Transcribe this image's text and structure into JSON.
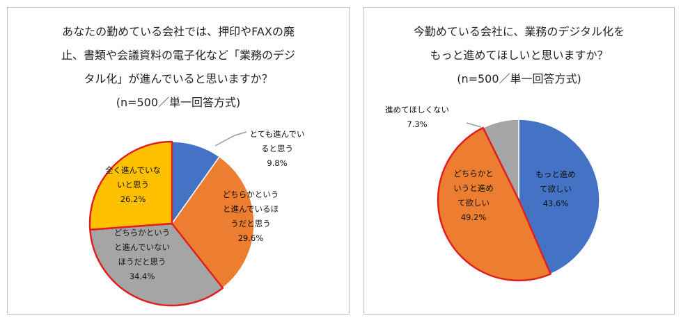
{
  "charts": [
    {
      "title_lines": [
        "あなたの勤めている会社では、押印やFAXの廃",
        "止、書類や会議資料の電子化など「業務のデジ",
        "タル化」が進んでいると思いますか？",
        "(n=500／単一回答方式)"
      ],
      "slice_labels": [
        [
          "とても進んでい",
          "ると思う",
          "9.8%"
        ],
        [
          "どちらかという",
          "と進んでいるほ",
          "うだと思う",
          "29.6%"
        ],
        [
          "どちらかという",
          "と進んでいない",
          "ほうだと思う",
          "34.4%"
        ],
        [
          "全く進んでいな",
          "いと思う",
          "26.2%"
        ]
      ]
    },
    {
      "title_lines": [
        "今勤めている会社に、業務のデジタル化を",
        "もっと進めてほしいと思いますか？",
        "(n=500／単一回答方式)"
      ],
      "slice_labels": [
        [
          "もっと進め",
          "て欲しい",
          "43.6%"
        ],
        [
          "どちらかと",
          "いうと進め",
          "て欲しい",
          "49.2%"
        ],
        [
          "進めてほしくない",
          "7.3%"
        ]
      ]
    }
  ],
  "chart_data": [
    {
      "type": "pie",
      "title": "あなたの勤めている会社では、押印やFAXの廃止、書類や会議資料の電子化など「業務のデジタル化」が進んでいると思いますか？(n=500／単一回答方式)",
      "categories": [
        "とても進んでいると思う",
        "どちらかというと進んでいるほうだと思う",
        "どちらかというと進んでいないほうだと思う",
        "全く進んでいないと思う"
      ],
      "values": [
        9.8,
        29.6,
        34.4,
        26.2
      ],
      "colors": [
        "#4472c4",
        "#ed7d31",
        "#a5a5a5",
        "#ffc000"
      ],
      "highlight_stroke": "#e02020"
    },
    {
      "type": "pie",
      "title": "今勤めている会社に、業務のデジタル化をもっと進めてほしいと思いますか？(n=500／単一回答方式)",
      "categories": [
        "もっと進めて欲しい",
        "どちらかというと進めて欲しい",
        "進めてほしくない"
      ],
      "values": [
        43.6,
        49.2,
        7.3
      ],
      "colors": [
        "#4472c4",
        "#ed7d31",
        "#a5a5a5"
      ],
      "highlight_stroke": "#e02020"
    }
  ]
}
